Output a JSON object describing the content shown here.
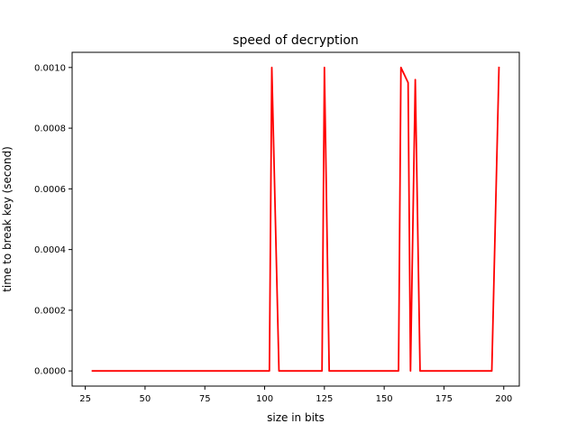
{
  "chart_data": {
    "type": "line",
    "title": "speed of decryption",
    "xlabel": "size in bits",
    "ylabel": "time to break key (second)",
    "xlim": [
      19.5,
      206.5
    ],
    "ylim": [
      -5e-05,
      0.00105
    ],
    "xticks": [
      25,
      50,
      75,
      100,
      125,
      150,
      175,
      200
    ],
    "xtick_labels": [
      "25",
      "50",
      "75",
      "100",
      "125",
      "150",
      "175",
      "200"
    ],
    "yticks": [
      0.0,
      0.0002,
      0.0004,
      0.0006,
      0.0008,
      0.001
    ],
    "ytick_labels": [
      "0.0000",
      "0.0002",
      "0.0004",
      "0.0006",
      "0.0008",
      "0.0010"
    ],
    "grid": false,
    "legend": "none",
    "series": [
      {
        "color": "#ff0000",
        "x": [
          28,
          102,
          103,
          106,
          124,
          125,
          127,
          156,
          157,
          160,
          161,
          163,
          165,
          195,
          198
        ],
        "y": [
          0.0,
          0.0,
          0.001,
          0.0,
          0.0,
          0.001,
          0.0,
          0.0,
          0.001,
          0.00095,
          0.0,
          0.00096,
          0.0,
          0.0,
          0.001
        ]
      }
    ]
  }
}
